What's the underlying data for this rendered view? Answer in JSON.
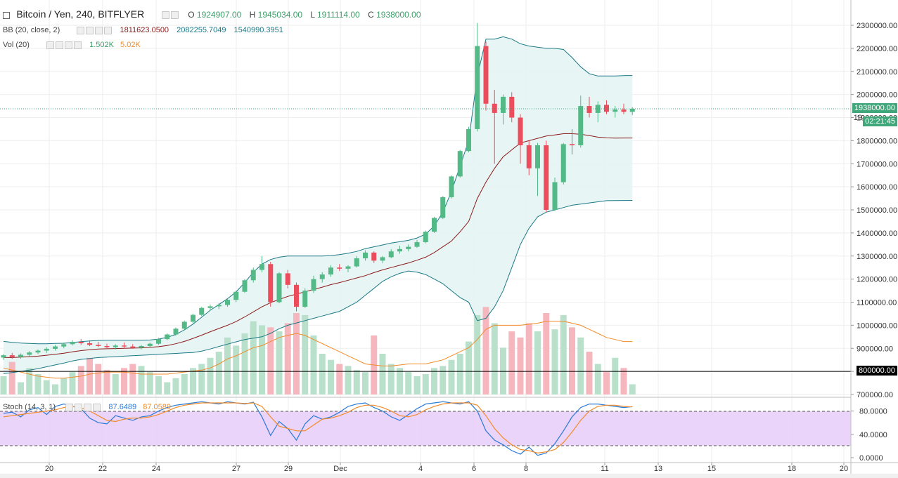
{
  "header": {
    "symbol": "Bitcoin / Yen, 240, BITFLYER",
    "o_label": "O",
    "o_value": "1924907.00",
    "h_label": "H",
    "h_value": "1945034.00",
    "l_label": "L",
    "l_value": "1911114.00",
    "c_label": "C",
    "c_value": "1938000.00"
  },
  "bb_legend": {
    "label": "BB (20, close, 2)",
    "basis": "1811623.0500",
    "upper": "2082255.7049",
    "lower": "1540990.3951"
  },
  "vol_legend": {
    "label": "Vol (20)",
    "volume": "1.502K",
    "ma": "5.02K"
  },
  "stoch_legend": {
    "label": "Stoch (14, 3, 1)",
    "k": "87.6489",
    "d": "87.0589"
  },
  "price_tags": {
    "last_price": "1938000.00",
    "countdown": "02:21:45",
    "hline_price": "800000.00",
    "partial_label": "19"
  },
  "colors": {
    "up": "#53b987",
    "down": "#eb4d5c",
    "bb_basis": "#8b1a1a",
    "bb_band": "#1b7a86",
    "bb_fill": "#e8f5f5",
    "stoch_k": "#2979d6",
    "stoch_d": "#f28b29",
    "stoch_band": "#e6c9f7",
    "vol_up": "#b9e0cb",
    "vol_down": "#f5b7bd",
    "vol_ma": "#f28b29"
  },
  "chart_data": {
    "type": "candlestick",
    "title": "Bitcoin / Yen, 240, BITFLYER",
    "y_ticks": [
      "2300000.00",
      "2200000.00",
      "2100000.00",
      "2000000.00",
      "1900000.00",
      "1800000.00",
      "1700000.00",
      "1600000.00",
      "1500000.00",
      "1400000.00",
      "1300000.00",
      "1200000.00",
      "1100000.00",
      "1000000.00",
      "900000.00",
      "800000.00",
      "700000.00"
    ],
    "y_tick_values": [
      2300000,
      2200000,
      2100000,
      2000000,
      1900000,
      1800000,
      1700000,
      1600000,
      1500000,
      1400000,
      1300000,
      1200000,
      1100000,
      1000000,
      900000,
      800000,
      700000
    ],
    "stoch_ticks": [
      "80.0000",
      "40.0000",
      "0.0000"
    ],
    "stoch_tick_values": [
      80,
      40,
      0
    ],
    "x_ticks": [
      "20",
      "22",
      "24",
      "27",
      "29",
      "Dec",
      "4",
      "6",
      "8",
      "11",
      "13",
      "15",
      "18",
      "20"
    ],
    "x_tick_dates": [
      "2017-11-20",
      "2017-11-22",
      "2017-11-24",
      "2017-11-27",
      "2017-11-29",
      "2017-12-01",
      "2017-12-04",
      "2017-12-06",
      "2017-12-08",
      "2017-12-11",
      "2017-12-13",
      "2017-12-15",
      "2017-12-18",
      "2017-12-20"
    ],
    "ylim": [
      680000,
      2330000
    ],
    "candles_ohlc_stride_4h": [
      [
        860000,
        875000,
        850000,
        870000
      ],
      [
        870000,
        880000,
        855000,
        862000
      ],
      [
        862000,
        878000,
        855000,
        872000
      ],
      [
        872000,
        888000,
        865000,
        882000
      ],
      [
        882000,
        895000,
        875000,
        890000
      ],
      [
        890000,
        905000,
        880000,
        898000
      ],
      [
        898000,
        915000,
        890000,
        908000
      ],
      [
        908000,
        925000,
        900000,
        918000
      ],
      [
        918000,
        935000,
        912000,
        928000
      ],
      [
        928000,
        940000,
        915000,
        922000
      ],
      [
        922000,
        935000,
        910000,
        915000
      ],
      [
        915000,
        928000,
        905000,
        910000
      ],
      [
        910000,
        920000,
        898000,
        905000
      ],
      [
        905000,
        918000,
        895000,
        912000
      ],
      [
        912000,
        925000,
        900000,
        908000
      ],
      [
        908000,
        918000,
        898000,
        903000
      ],
      [
        903000,
        915000,
        895000,
        910000
      ],
      [
        910000,
        925000,
        905000,
        920000
      ],
      [
        920000,
        945000,
        915000,
        940000
      ],
      [
        940000,
        965000,
        935000,
        960000
      ],
      [
        960000,
        990000,
        955000,
        985000
      ],
      [
        985000,
        1020000,
        980000,
        1015000
      ],
      [
        1015000,
        1050000,
        1010000,
        1045000
      ],
      [
        1045000,
        1080000,
        1040000,
        1075000
      ],
      [
        1075000,
        1090000,
        1065000,
        1082000
      ],
      [
        1082000,
        1095000,
        1070000,
        1088000
      ],
      [
        1088000,
        1115000,
        1080000,
        1110000
      ],
      [
        1110000,
        1150000,
        1100000,
        1145000
      ],
      [
        1145000,
        1200000,
        1140000,
        1195000
      ],
      [
        1195000,
        1250000,
        1185000,
        1240000
      ],
      [
        1240000,
        1300000,
        1230000,
        1265000
      ],
      [
        1265000,
        1275000,
        1080000,
        1100000
      ],
      [
        1100000,
        1230000,
        1095000,
        1225000
      ],
      [
        1225000,
        1240000,
        1160000,
        1175000
      ],
      [
        1175000,
        1185000,
        1060000,
        1080000
      ],
      [
        1080000,
        1160000,
        1075000,
        1150000
      ],
      [
        1150000,
        1215000,
        1140000,
        1200000
      ],
      [
        1200000,
        1230000,
        1185000,
        1220000
      ],
      [
        1220000,
        1260000,
        1210000,
        1250000
      ],
      [
        1250000,
        1265000,
        1235000,
        1245000
      ],
      [
        1245000,
        1260000,
        1230000,
        1255000
      ],
      [
        1255000,
        1300000,
        1250000,
        1290000
      ],
      [
        1290000,
        1325000,
        1280000,
        1315000
      ],
      [
        1315000,
        1320000,
        1270000,
        1280000
      ],
      [
        1280000,
        1300000,
        1270000,
        1295000
      ],
      [
        1295000,
        1330000,
        1290000,
        1320000
      ],
      [
        1320000,
        1345000,
        1310000,
        1330000
      ],
      [
        1330000,
        1350000,
        1320000,
        1340000
      ],
      [
        1340000,
        1370000,
        1335000,
        1360000
      ],
      [
        1360000,
        1410000,
        1355000,
        1405000
      ],
      [
        1405000,
        1470000,
        1400000,
        1465000
      ],
      [
        1465000,
        1560000,
        1460000,
        1555000
      ],
      [
        1555000,
        1650000,
        1550000,
        1645000
      ],
      [
        1645000,
        1760000,
        1640000,
        1755000
      ],
      [
        1755000,
        1860000,
        1750000,
        1850000
      ],
      [
        1850000,
        2310000,
        1840000,
        2210000
      ],
      [
        2210000,
        2230000,
        1930000,
        1960000
      ],
      [
        1960000,
        2020000,
        1700000,
        1920000
      ],
      [
        1920000,
        2000000,
        1870000,
        1990000
      ],
      [
        1990000,
        2010000,
        1880000,
        1900000
      ],
      [
        1900000,
        1915000,
        1700000,
        1780000
      ],
      [
        1780000,
        1800000,
        1650000,
        1680000
      ],
      [
        1680000,
        1790000,
        1560000,
        1780000
      ],
      [
        1780000,
        1800000,
        1490000,
        1500000
      ],
      [
        1500000,
        1640000,
        1495000,
        1620000
      ],
      [
        1620000,
        1790000,
        1610000,
        1785000
      ],
      [
        1785000,
        1850000,
        1740000,
        1780000
      ],
      [
        1780000,
        1995000,
        1770000,
        1950000
      ],
      [
        1950000,
        1990000,
        1900000,
        1920000
      ],
      [
        1920000,
        1970000,
        1880000,
        1955000
      ],
      [
        1955000,
        1975000,
        1915000,
        1925000
      ],
      [
        1925000,
        1950000,
        1900000,
        1935000
      ],
      [
        1935000,
        1960000,
        1915000,
        1925000
      ],
      [
        1924907,
        1945034,
        1911114,
        1938000
      ]
    ],
    "bb_upper": [
      930000,
      926000,
      923000,
      921000,
      920000,
      920000,
      921000,
      922000,
      925000,
      929000,
      932000,
      934000,
      935000,
      935000,
      935000,
      935000,
      935000,
      936000,
      940000,
      948000,
      960000,
      980000,
      1005000,
      1035000,
      1065000,
      1090000,
      1115000,
      1145000,
      1185000,
      1230000,
      1265000,
      1285000,
      1295000,
      1300000,
      1300000,
      1300000,
      1300000,
      1300000,
      1302000,
      1306000,
      1312000,
      1320000,
      1332000,
      1340000,
      1348000,
      1356000,
      1362000,
      1368000,
      1378000,
      1395000,
      1430000,
      1490000,
      1580000,
      1690000,
      1800000,
      2080000,
      2240000,
      2240000,
      2250000,
      2240000,
      2220000,
      2210000,
      2205000,
      2200000,
      2200000,
      2195000,
      2160000,
      2120000,
      2090000,
      2080000,
      2080000,
      2080000,
      2082000,
      2082256
    ],
    "bb_lower": [
      790000,
      795000,
      800000,
      806000,
      812000,
      820000,
      828000,
      836000,
      845000,
      852000,
      856000,
      860000,
      862000,
      864000,
      866000,
      868000,
      870000,
      872000,
      874000,
      876000,
      878000,
      880000,
      882000,
      888000,
      897000,
      908000,
      918000,
      928000,
      938000,
      944000,
      950000,
      965000,
      985000,
      1000000,
      1010000,
      1020000,
      1030000,
      1040000,
      1050000,
      1060000,
      1080000,
      1100000,
      1130000,
      1160000,
      1190000,
      1210000,
      1225000,
      1235000,
      1230000,
      1220000,
      1200000,
      1180000,
      1150000,
      1120000,
      1100000,
      1020000,
      1030000,
      1080000,
      1150000,
      1250000,
      1350000,
      1420000,
      1470000,
      1490000,
      1500000,
      1510000,
      1520000,
      1525000,
      1530000,
      1535000,
      1540000,
      1540500,
      1540900,
      1540990
    ],
    "bb_basis": [
      860000,
      860000,
      862000,
      864000,
      866000,
      870000,
      874000,
      879000,
      885000,
      890000,
      894000,
      897000,
      898000,
      899000,
      900000,
      901000,
      902000,
      904000,
      907000,
      912000,
      920000,
      930000,
      943000,
      957000,
      972000,
      986000,
      1000000,
      1016000,
      1036000,
      1058000,
      1080000,
      1098000,
      1112000,
      1125000,
      1135000,
      1145000,
      1155000,
      1165000,
      1176000,
      1185000,
      1195000,
      1205000,
      1215000,
      1228000,
      1240000,
      1250000,
      1260000,
      1270000,
      1282000,
      1295000,
      1315000,
      1340000,
      1365000,
      1405000,
      1450000,
      1550000,
      1620000,
      1680000,
      1730000,
      1760000,
      1790000,
      1800000,
      1810000,
      1820000,
      1825000,
      1830000,
      1830000,
      1828000,
      1822000,
      1815000,
      1812000,
      1811000,
      1811500,
      1811623
    ],
    "volume_up": [
      true,
      false,
      true,
      true,
      true,
      true,
      true,
      true,
      true,
      false,
      false,
      false,
      false,
      true,
      false,
      false,
      true,
      true,
      true,
      true,
      true,
      true,
      true,
      true,
      true,
      true,
      true,
      true,
      true,
      true,
      true,
      false,
      true,
      false,
      false,
      true,
      true,
      true,
      true,
      false,
      true,
      true,
      true,
      false,
      true,
      true,
      true,
      true,
      true,
      true,
      true,
      true,
      true,
      true,
      true,
      true,
      false,
      true,
      true,
      false,
      false,
      false,
      true,
      false,
      true,
      true,
      false,
      true,
      false,
      true,
      false,
      true,
      false,
      true
    ],
    "volume_pct": [
      18,
      32,
      12,
      26,
      20,
      14,
      10,
      16,
      22,
      28,
      36,
      30,
      24,
      20,
      26,
      30,
      28,
      22,
      18,
      12,
      16,
      20,
      26,
      30,
      36,
      42,
      56,
      48,
      60,
      72,
      68,
      66,
      62,
      70,
      80,
      78,
      58,
      40,
      34,
      30,
      28,
      24,
      22,
      58,
      40,
      30,
      26,
      22,
      18,
      20,
      26,
      28,
      34,
      40,
      52,
      78,
      86,
      70,
      46,
      62,
      56,
      70,
      62,
      80,
      64,
      78,
      66,
      56,
      42,
      30,
      22,
      36,
      26,
      10
    ],
    "volume_ma_pct": [
      26,
      24,
      22,
      20,
      18,
      17,
      16,
      16,
      17,
      18,
      20,
      21,
      22,
      22,
      22,
      21,
      20,
      20,
      20,
      20,
      21,
      22,
      23,
      24,
      26,
      30,
      35,
      38,
      42,
      46,
      48,
      52,
      56,
      58,
      60,
      58,
      54,
      50,
      46,
      42,
      38,
      34,
      30,
      29,
      28,
      28,
      29,
      30,
      30,
      30,
      32,
      34,
      38,
      42,
      46,
      54,
      64,
      68,
      68,
      68,
      68,
      69,
      70,
      72,
      72,
      72,
      70,
      68,
      64,
      60,
      56,
      54,
      52,
      52
    ],
    "stoch_k": [
      76,
      78,
      70,
      82,
      86,
      74,
      88,
      92,
      88,
      84,
      68,
      60,
      58,
      72,
      68,
      64,
      70,
      72,
      80,
      86,
      90,
      92,
      94,
      96,
      94,
      92,
      96,
      94,
      92,
      95,
      70,
      38,
      62,
      50,
      30,
      58,
      72,
      66,
      70,
      78,
      88,
      92,
      94,
      86,
      80,
      70,
      64,
      74,
      84,
      92,
      94,
      96,
      94,
      92,
      96,
      80,
      46,
      30,
      22,
      12,
      6,
      18,
      4,
      8,
      24,
      46,
      70,
      86,
      92,
      92,
      90,
      88,
      86,
      87.6489
    ],
    "stoch_d": [
      70,
      72,
      74,
      76,
      78,
      80,
      82,
      86,
      88,
      86,
      80,
      72,
      64,
      62,
      66,
      68,
      68,
      70,
      74,
      80,
      86,
      90,
      92,
      94,
      94,
      94,
      94,
      94,
      93,
      94,
      88,
      70,
      54,
      50,
      46,
      46,
      56,
      66,
      68,
      72,
      78,
      86,
      90,
      90,
      86,
      80,
      72,
      70,
      74,
      82,
      88,
      92,
      94,
      94,
      94,
      90,
      72,
      50,
      34,
      22,
      14,
      12,
      8,
      10,
      14,
      26,
      44,
      64,
      80,
      88,
      90,
      90,
      88,
      87.0589
    ]
  }
}
